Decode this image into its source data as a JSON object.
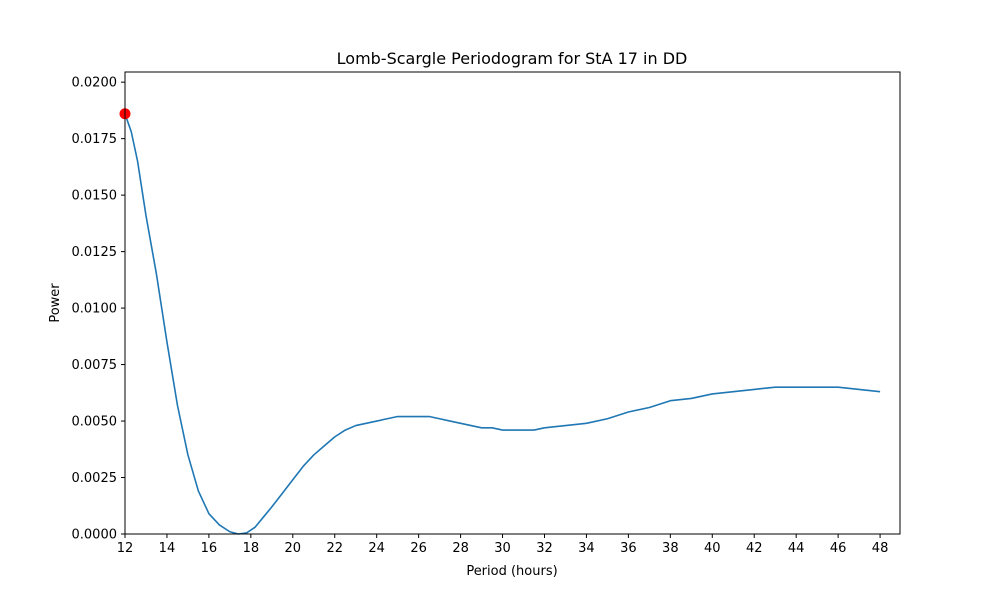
{
  "chart_data": {
    "type": "line",
    "title": "Lomb-Scargle Periodogram for StA 17 in DD",
    "xlabel": "Period (hours)",
    "ylabel": "Power",
    "xlim": [
      12,
      48.95
    ],
    "ylim": [
      0,
      0.02045
    ],
    "grid": false,
    "x_ticks": [
      12,
      14,
      16,
      18,
      20,
      22,
      24,
      26,
      28,
      30,
      32,
      34,
      36,
      38,
      40,
      42,
      44,
      46,
      48
    ],
    "x_tick_labels": [
      "12",
      "14",
      "16",
      "18",
      "20",
      "22",
      "24",
      "26",
      "28",
      "30",
      "32",
      "34",
      "36",
      "38",
      "40",
      "42",
      "44",
      "46",
      "48"
    ],
    "y_ticks": [
      0,
      0.0025,
      0.005,
      0.0075,
      0.01,
      0.0125,
      0.015,
      0.0175,
      0.02
    ],
    "y_tick_labels": [
      "0.0000",
      "0.0025",
      "0.0050",
      "0.0075",
      "0.0100",
      "0.0125",
      "0.0150",
      "0.0175",
      "0.0200"
    ],
    "series": [
      {
        "color": "#1f77b4",
        "x": [
          12.0,
          12.3,
          12.6,
          13.0,
          13.5,
          14.0,
          14.5,
          15.0,
          15.5,
          16.0,
          16.5,
          17.0,
          17.4,
          17.8,
          18.2,
          18.6,
          19.0,
          19.5,
          20.0,
          20.5,
          21.0,
          21.5,
          22.0,
          22.5,
          23.0,
          23.5,
          24.0,
          24.5,
          25.0,
          25.5,
          26.0,
          26.5,
          27.0,
          27.5,
          28.0,
          28.5,
          29.0,
          29.5,
          30.0,
          30.5,
          31.0,
          31.5,
          32.0,
          33.0,
          34.0,
          35.0,
          36.0,
          37.0,
          38.0,
          39.0,
          40.0,
          41.0,
          42.0,
          43.0,
          43.8,
          44.5,
          45.0,
          46.0,
          47.0,
          48.0
        ],
        "y": [
          0.0186,
          0.0178,
          0.0165,
          0.0141,
          0.0115,
          0.0085,
          0.0057,
          0.0035,
          0.0019,
          0.0009,
          0.0004,
          0.0001,
          0.0,
          5e-05,
          0.0003,
          0.00075,
          0.0012,
          0.0018,
          0.0024,
          0.003,
          0.0035,
          0.0039,
          0.0043,
          0.0046,
          0.0048,
          0.0049,
          0.005,
          0.0051,
          0.0052,
          0.0052,
          0.0052,
          0.0052,
          0.0051,
          0.005,
          0.0049,
          0.0048,
          0.0047,
          0.0047,
          0.0046,
          0.0046,
          0.0046,
          0.0046,
          0.0047,
          0.0048,
          0.0049,
          0.0051,
          0.0054,
          0.0056,
          0.0059,
          0.006,
          0.0062,
          0.0063,
          0.0064,
          0.0065,
          0.0065,
          0.0065,
          0.0065,
          0.0065,
          0.0064,
          0.0063
        ]
      }
    ],
    "highlight_point": {
      "x": 12.0,
      "y": 0.0186,
      "color": "#ff0000"
    }
  }
}
